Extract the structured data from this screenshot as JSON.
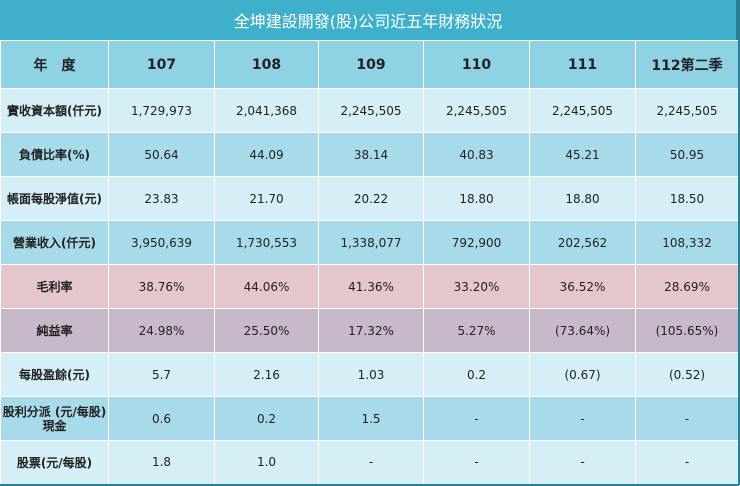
{
  "title": "全坤建設開發(股)公司近五年財務狀況",
  "header": {
    "label": "年　度",
    "years": [
      "107",
      "108",
      "109",
      "110",
      "111",
      "112第二季"
    ]
  },
  "rows": [
    {
      "label": "實收資本額(仟元)",
      "values": [
        "1,729,973",
        "2,041,368",
        "2,245,505",
        "2,245,505",
        "2,245,505",
        "2,245,505"
      ]
    },
    {
      "label": "負債比率(%)",
      "values": [
        "50.64",
        "44.09",
        "38.14",
        "40.83",
        "45.21",
        "50.95"
      ]
    },
    {
      "label": "帳面每股淨值(元)",
      "values": [
        "23.83",
        "21.70",
        "20.22",
        "18.80",
        "18.80",
        "18.50"
      ]
    },
    {
      "label": "營業收入(仟元)",
      "values": [
        "3,950,639",
        "1,730,553",
        "1,338,077",
        "792,900",
        "202,562",
        "108,332"
      ]
    },
    {
      "label": "毛利率",
      "values": [
        "38.76%",
        "44.06%",
        "41.36%",
        "33.20%",
        "36.52%",
        "28.69%"
      ]
    },
    {
      "label": "純益率",
      "values": [
        "24.98%",
        "25.50%",
        "17.32%",
        "5.27%",
        "(73.64%)",
        "(105.65%)"
      ]
    },
    {
      "label": "每股盈餘(元)",
      "values": [
        "5.7",
        "2.16",
        "1.03",
        "0.2",
        "(0.67)",
        "(0.52)"
      ]
    },
    {
      "label_line1": "股利分派 (元/每股)",
      "label_line2": "現金",
      "values": [
        "0.6",
        "0.2",
        "1.5",
        "-",
        "-",
        "-"
      ]
    },
    {
      "label": "股票(元/每股)",
      "values": [
        "1.8",
        "1.0",
        "-",
        "-",
        "-",
        "-"
      ]
    }
  ],
  "colors": {
    "title_bg": "#3fb0c9",
    "header_bg": "#8fd2e3",
    "row_light": "#d6eef6",
    "row_dark": "#a8dbe9",
    "row_pink": "#e5c6cc",
    "row_mauve": "#c7b9c9"
  }
}
